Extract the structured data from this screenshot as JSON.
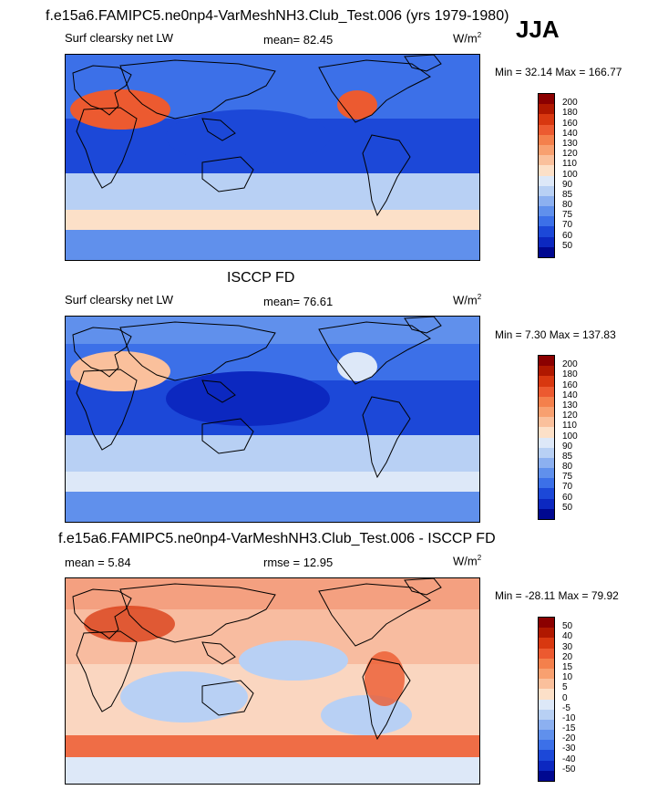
{
  "season": "JJA",
  "panels": [
    {
      "title": "f.e15a6.FAMIPC5.ne0np4-VarMeshNH3.Club_Test.006 (yrs 1979-1980)",
      "left_label": "Surf clearsky net LW",
      "mid_label": "mean=  82.45",
      "units": "W/m",
      "units_sup": "2",
      "minmax": "Min =  32.14 Max = 166.77",
      "colorbar": {
        "colors": [
          "#8b0000",
          "#b01800",
          "#d83810",
          "#ec5a30",
          "#f4804c",
          "#f8a070",
          "#fac09c",
          "#fce0c8",
          "#dde8f8",
          "#b8d0f4",
          "#8cb0f0",
          "#6090ec",
          "#3c70e8",
          "#1c48d8",
          "#0c28c0",
          "#000890"
        ],
        "ticks": [
          "200",
          "180",
          "160",
          "140",
          "130",
          "120",
          "110",
          "100",
          "90",
          "85",
          "80",
          "75",
          "70",
          "60",
          "50"
        ]
      },
      "style": "model"
    },
    {
      "title": "ISCCP FD",
      "left_label": "Surf clearsky net LW",
      "mid_label": "mean=  76.61",
      "units": "W/m",
      "units_sup": "2",
      "minmax": "Min =   7.30 Max = 137.83",
      "colorbar": {
        "colors": [
          "#8b0000",
          "#b01800",
          "#d83810",
          "#ec5a30",
          "#f4804c",
          "#f8a070",
          "#fac09c",
          "#fce0c8",
          "#dde8f8",
          "#b8d0f4",
          "#8cb0f0",
          "#6090ec",
          "#3c70e8",
          "#1c48d8",
          "#0c28c0",
          "#000890"
        ],
        "ticks": [
          "200",
          "180",
          "160",
          "140",
          "130",
          "120",
          "110",
          "100",
          "90",
          "85",
          "80",
          "75",
          "70",
          "60",
          "50"
        ]
      },
      "style": "obs"
    },
    {
      "title": "f.e15a6.FAMIPC5.ne0np4-VarMeshNH3.Club_Test.006 - ISCCP FD",
      "left_label": "mean =   5.84",
      "mid_label": "rmse =  12.95",
      "units": "W/m",
      "units_sup": "2",
      "minmax": "Min = -28.11 Max =  79.92",
      "colorbar": {
        "colors": [
          "#8b0000",
          "#b01800",
          "#d83810",
          "#ec5a30",
          "#f4804c",
          "#f8a070",
          "#fac09c",
          "#fce0c8",
          "#dde8f8",
          "#b8d0f4",
          "#8cb0f0",
          "#6090ec",
          "#3c70e8",
          "#1c48d8",
          "#0c28c0",
          "#000890"
        ],
        "ticks": [
          "50",
          "40",
          "30",
          "20",
          "15",
          "10",
          "5",
          "0",
          "-5",
          "-10",
          "-15",
          "-20",
          "-30",
          "-40",
          "-50"
        ]
      },
      "style": "diff"
    }
  ],
  "chart_data": {
    "type": "heatmap",
    "season": "JJA",
    "maps": [
      {
        "name": "f.e15a6.FAMIPC5.ne0np4-VarMeshNH3.Club_Test.006 (yrs 1979-1980)",
        "variable": "Surf clearsky net LW",
        "units": "W/m2",
        "mean": 82.45,
        "min": 32.14,
        "max": 166.77,
        "levels": [
          50,
          60,
          70,
          75,
          80,
          85,
          90,
          100,
          110,
          120,
          130,
          140,
          160,
          180,
          200
        ]
      },
      {
        "name": "ISCCP FD",
        "variable": "Surf clearsky net LW",
        "units": "W/m2",
        "mean": 76.61,
        "min": 7.3,
        "max": 137.83,
        "levels": [
          50,
          60,
          70,
          75,
          80,
          85,
          90,
          100,
          110,
          120,
          130,
          140,
          160,
          180,
          200
        ]
      },
      {
        "name": "f.e15a6.FAMIPC5.ne0np4-VarMeshNH3.Club_Test.006 - ISCCP FD",
        "units": "W/m2",
        "mean": 5.84,
        "rmse": 12.95,
        "min": -28.11,
        "max": 79.92,
        "levels": [
          -50,
          -40,
          -30,
          -20,
          -15,
          -10,
          -5,
          0,
          5,
          10,
          15,
          20,
          30,
          40,
          50
        ]
      }
    ]
  }
}
